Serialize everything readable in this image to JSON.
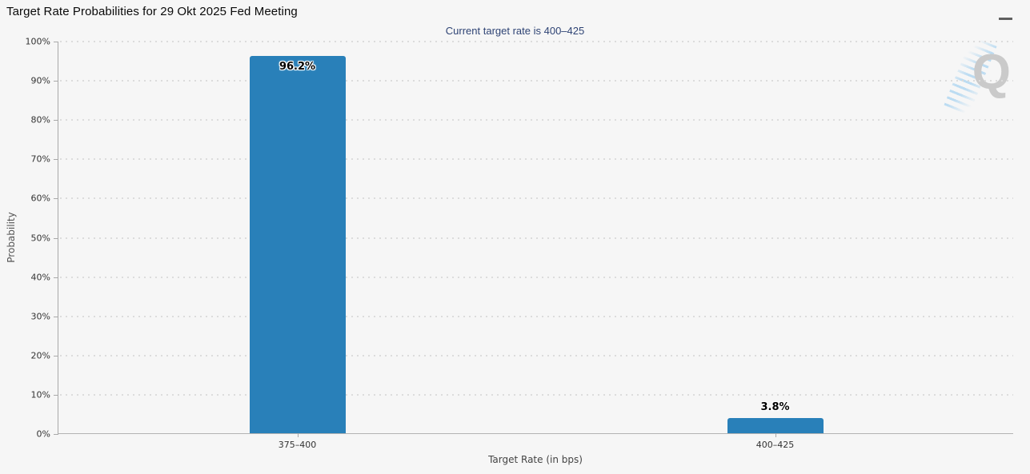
{
  "header": {
    "title": "Target Rate Probabilities for 29 Okt 2025 Fed Meeting",
    "menu_icon": "hamburger-icon"
  },
  "subtitle": "Current target rate is 400–425",
  "watermark_letter": "Q",
  "colors": {
    "background": "#f6f6f6",
    "bar": "#2980b9",
    "subtitle_text": "#2e4374",
    "axis_line": "#a9a9a9",
    "grid_dot": "#dcdcdc",
    "watermark_letter": "#cacaca",
    "watermark_stripes": "#8cc6ee",
    "menu_icon": "#5f5f5f"
  },
  "chart_data": {
    "type": "bar",
    "title": "Target Rate Probabilities for 29 Okt 2025 Fed Meeting",
    "subtitle": "Current target rate is 400–425",
    "categories": [
      "375–400",
      "400–425"
    ],
    "values": [
      96.2,
      3.8
    ],
    "value_labels": [
      "96.2%",
      "3.8%"
    ],
    "xlabel": "Target Rate (in bps)",
    "ylabel": "Probability",
    "ylim": [
      0,
      100
    ],
    "ytick_values": [
      0,
      10,
      20,
      30,
      40,
      50,
      60,
      70,
      80,
      90,
      100
    ],
    "ytick_labels": [
      "0%",
      "10%",
      "20%",
      "30%",
      "40%",
      "50%",
      "60%",
      "70%",
      "80%",
      "90%",
      "100%"
    ],
    "bar_color": "#2980b9",
    "grid": "horizontal-dotted",
    "legend_position": "none"
  }
}
